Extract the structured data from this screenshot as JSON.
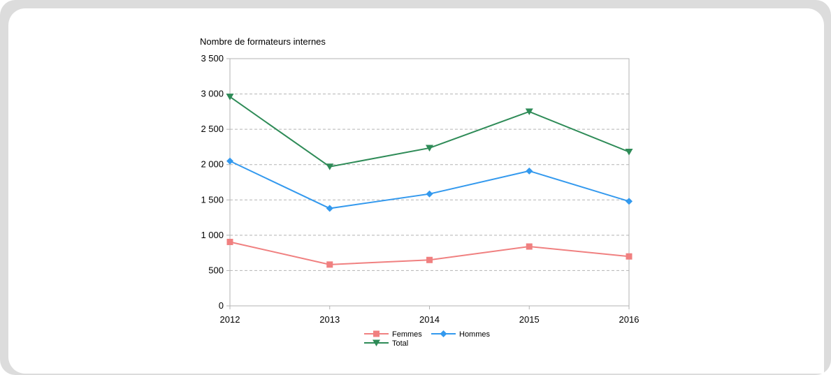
{
  "chart_data": {
    "type": "line",
    "title": "Nombre de formateurs internes",
    "x": [
      "2012",
      "2013",
      "2014",
      "2015",
      "2016"
    ],
    "ylim": [
      0,
      3500
    ],
    "yticks": [
      0,
      500,
      1000,
      1500,
      2000,
      2500,
      3000,
      3500
    ],
    "ytick_labels": [
      "0",
      "500",
      "1 000",
      "1 500",
      "2 000",
      "2 500",
      "3 000",
      "3 500"
    ],
    "grid": true,
    "legend_position": "bottom",
    "series": [
      {
        "name": "Femmes",
        "color": "#f08080",
        "marker": "square",
        "values": [
          905,
          585,
          650,
          840,
          700
        ]
      },
      {
        "name": "Hommes",
        "color": "#3399ee",
        "marker": "diamond",
        "values": [
          2050,
          1380,
          1585,
          1910,
          1480
        ]
      },
      {
        "name": "Total",
        "color": "#2e8b57",
        "marker": "triangle-down",
        "values": [
          2960,
          1970,
          2235,
          2750,
          2180
        ]
      }
    ]
  }
}
